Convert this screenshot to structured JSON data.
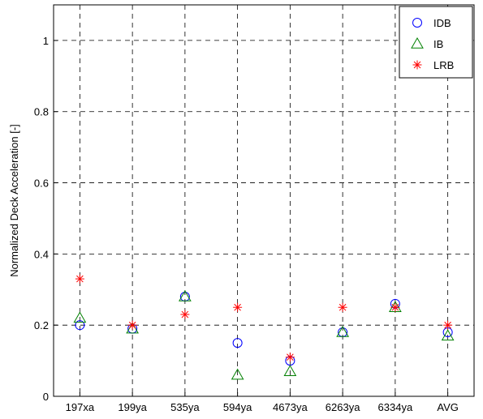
{
  "chart_data": {
    "type": "scatter",
    "title": "",
    "xlabel": "",
    "ylabel": "Normalized Deck Acceleration [-]",
    "categories": [
      "197xa",
      "199ya",
      "535ya",
      "594ya",
      "4673ya",
      "6263ya",
      "6334ya",
      "AVG"
    ],
    "ylim": [
      0,
      1.1
    ],
    "yticks": [
      "0",
      "0.2",
      "0.4",
      "0.6",
      "0.8",
      "1"
    ],
    "grid": true,
    "grid_style": "dashed",
    "legend_position": "top-right",
    "series": [
      {
        "name": "IDB",
        "marker": "circle",
        "color": "#0000ff",
        "values": [
          0.2,
          0.19,
          0.28,
          0.15,
          0.1,
          0.18,
          0.26,
          0.18
        ]
      },
      {
        "name": "IB",
        "marker": "triangle",
        "color": "#008000",
        "values": [
          0.22,
          0.19,
          0.28,
          0.06,
          0.07,
          0.18,
          0.25,
          0.17
        ]
      },
      {
        "name": "LRB",
        "marker": "asterisk",
        "color": "#ff0000",
        "values": [
          0.33,
          0.2,
          0.23,
          0.25,
          0.11,
          0.25,
          0.25,
          0.2
        ]
      }
    ]
  }
}
